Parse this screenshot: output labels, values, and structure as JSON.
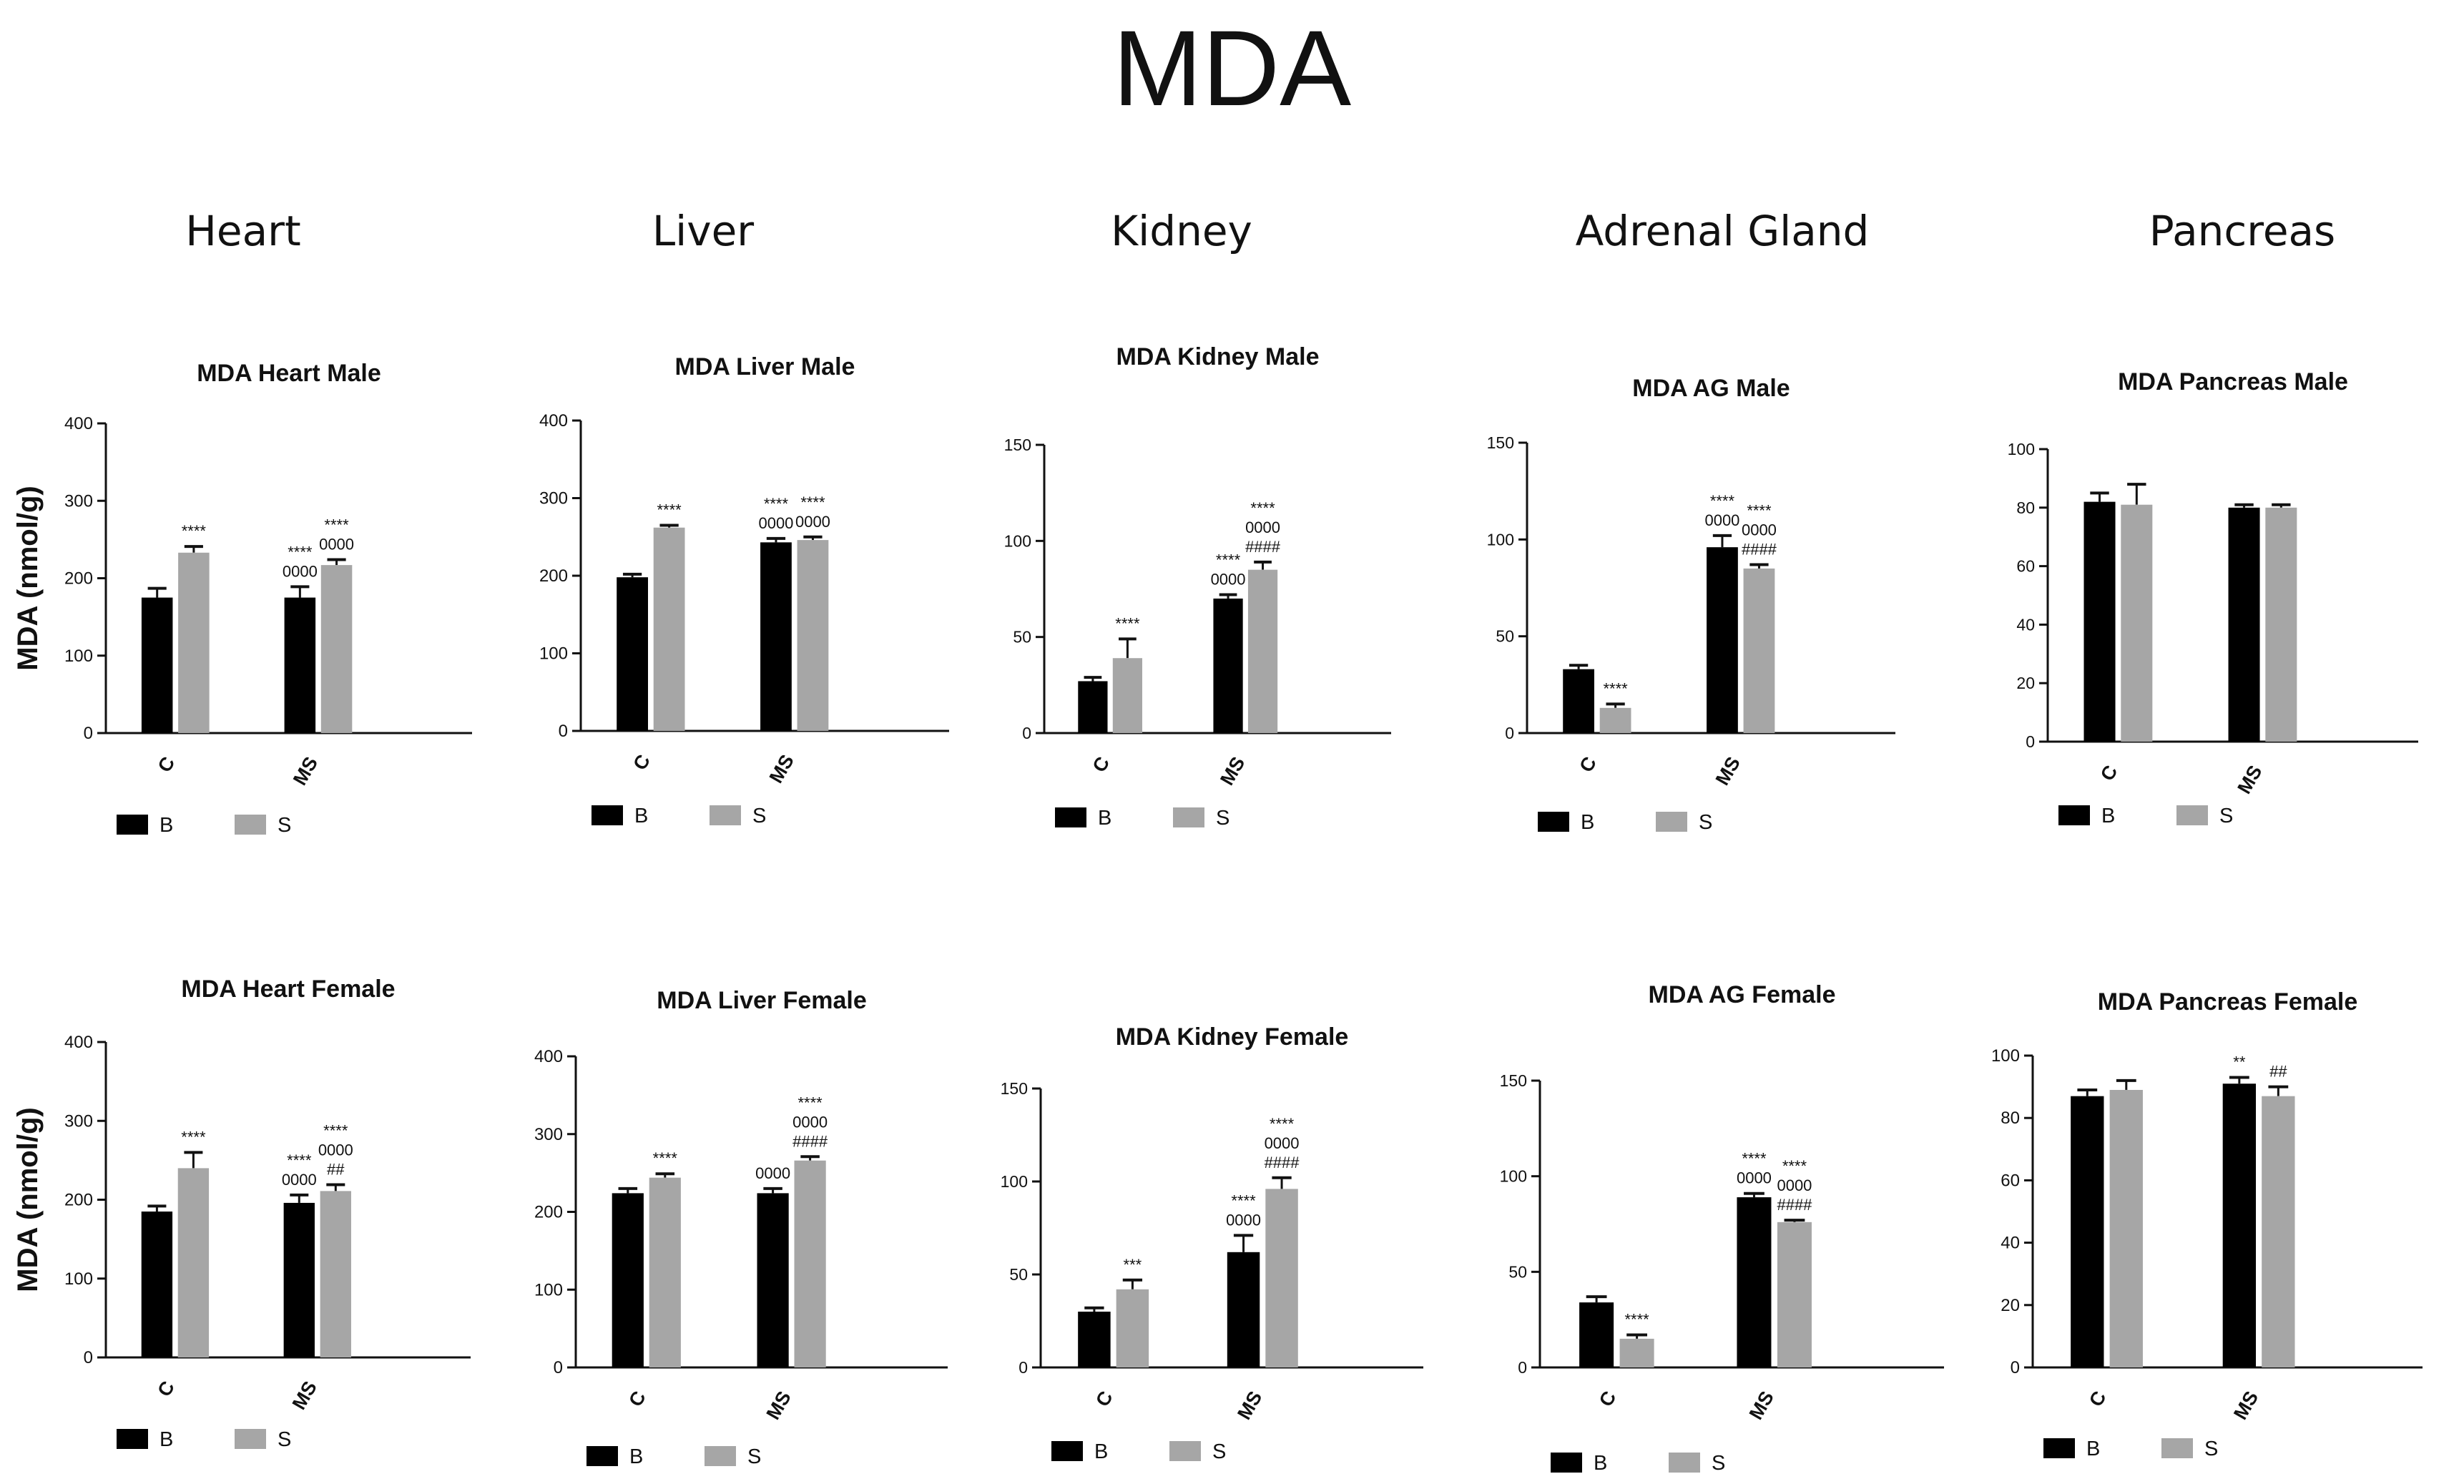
{
  "title": "MDA",
  "column_titles": [
    "Heart",
    "Liver",
    "Kidney",
    "Adrenal Gland",
    "Pancreas"
  ],
  "colors": {
    "B": "#000000",
    "S": "#a6a6a6"
  },
  "chart_data": [
    {
      "type": "bar",
      "title": "MDA Heart Male",
      "ylabel": "MDA (nmol/g)",
      "categories": [
        "C",
        "MS"
      ],
      "ylim": [
        0,
        400
      ],
      "yticks": [
        0,
        100,
        200,
        300,
        400
      ],
      "series": [
        {
          "name": "B",
          "values": [
            175,
            175
          ],
          "errors": [
            12,
            14
          ]
        },
        {
          "name": "S",
          "values": [
            233,
            217
          ],
          "errors": [
            8,
            7
          ]
        }
      ],
      "annotations": [
        [
          "",
          "****"
        ],
        [
          "****\n0000",
          "****\n0000"
        ]
      ]
    },
    {
      "type": "bar",
      "title": "MDA Liver Male",
      "ylabel": "",
      "categories": [
        "C",
        "MS"
      ],
      "ylim": [
        0,
        400
      ],
      "yticks": [
        0,
        100,
        200,
        300,
        400
      ],
      "series": [
        {
          "name": "B",
          "values": [
            198,
            243
          ],
          "errors": [
            4,
            5
          ]
        },
        {
          "name": "S",
          "values": [
            262,
            246
          ],
          "errors": [
            3,
            4
          ]
        }
      ],
      "annotations": [
        [
          "",
          "****"
        ],
        [
          "****\n0000",
          "****\n0000"
        ]
      ]
    },
    {
      "type": "bar",
      "title": "MDA Kidney Male",
      "ylabel": "",
      "categories": [
        "C",
        "MS"
      ],
      "ylim": [
        0,
        150
      ],
      "yticks": [
        0,
        50,
        100,
        150
      ],
      "series": [
        {
          "name": "B",
          "values": [
            27,
            70
          ],
          "errors": [
            2,
            2
          ]
        },
        {
          "name": "S",
          "values": [
            39,
            85
          ],
          "errors": [
            10,
            4
          ]
        }
      ],
      "annotations": [
        [
          "",
          "****"
        ],
        [
          "****\n0000",
          "****\n0000\n####"
        ]
      ]
    },
    {
      "type": "bar",
      "title": "MDA AG Male",
      "ylabel": "",
      "categories": [
        "C",
        "MS"
      ],
      "ylim": [
        0,
        150
      ],
      "yticks": [
        0,
        50,
        100,
        150
      ],
      "series": [
        {
          "name": "B",
          "values": [
            33,
            96
          ],
          "errors": [
            2,
            6
          ]
        },
        {
          "name": "S",
          "values": [
            13,
            85
          ],
          "errors": [
            2,
            2
          ]
        }
      ],
      "annotations": [
        [
          "",
          "****"
        ],
        [
          "****\n0000",
          "****\n0000\n####"
        ]
      ]
    },
    {
      "type": "bar",
      "title": "MDA Pancreas Male",
      "ylabel": "",
      "categories": [
        "C",
        "MS"
      ],
      "ylim": [
        0,
        100
      ],
      "yticks": [
        0,
        20,
        40,
        60,
        80,
        100
      ],
      "series": [
        {
          "name": "B",
          "values": [
            82,
            80
          ],
          "errors": [
            3,
            1
          ]
        },
        {
          "name": "S",
          "values": [
            81,
            80
          ],
          "errors": [
            7,
            1
          ]
        }
      ],
      "annotations": [
        [
          "",
          ""
        ],
        [
          "",
          ""
        ]
      ]
    },
    {
      "type": "bar",
      "title": "MDA Heart Female",
      "ylabel": "MDA (nmol/g)",
      "categories": [
        "C",
        "MS"
      ],
      "ylim": [
        0,
        400
      ],
      "yticks": [
        0,
        100,
        200,
        300,
        400
      ],
      "series": [
        {
          "name": "B",
          "values": [
            185,
            196
          ],
          "errors": [
            7,
            10
          ]
        },
        {
          "name": "S",
          "values": [
            240,
            211
          ],
          "errors": [
            20,
            8
          ]
        }
      ],
      "annotations": [
        [
          "",
          "****"
        ],
        [
          "****\n0000",
          "****\n0000\n##"
        ]
      ]
    },
    {
      "type": "bar",
      "title": "MDA Liver Female",
      "ylabel": "",
      "categories": [
        "C",
        "MS"
      ],
      "ylim": [
        0,
        400
      ],
      "yticks": [
        0,
        100,
        200,
        300,
        400
      ],
      "series": [
        {
          "name": "B",
          "values": [
            224,
            224
          ],
          "errors": [
            6,
            6
          ]
        },
        {
          "name": "S",
          "values": [
            244,
            266
          ],
          "errors": [
            5,
            5
          ]
        }
      ],
      "annotations": [
        [
          "",
          "****"
        ],
        [
          "0000",
          "****\n0000\n####"
        ]
      ]
    },
    {
      "type": "bar",
      "title": "MDA Kidney Female",
      "ylabel": "",
      "categories": [
        "C",
        "MS"
      ],
      "ylim": [
        0,
        150
      ],
      "yticks": [
        0,
        50,
        100,
        150
      ],
      "series": [
        {
          "name": "B",
          "values": [
            30,
            62
          ],
          "errors": [
            2,
            9
          ]
        },
        {
          "name": "S",
          "values": [
            42,
            96
          ],
          "errors": [
            5,
            6
          ]
        }
      ],
      "annotations": [
        [
          "",
          "***"
        ],
        [
          "****\n0000",
          "****\n0000\n####"
        ]
      ]
    },
    {
      "type": "bar",
      "title": "MDA AG Female",
      "ylabel": "",
      "categories": [
        "C",
        "MS"
      ],
      "ylim": [
        0,
        150
      ],
      "yticks": [
        0,
        50,
        100,
        150
      ],
      "series": [
        {
          "name": "B",
          "values": [
            34,
            89
          ],
          "errors": [
            3,
            2
          ]
        },
        {
          "name": "S",
          "values": [
            15,
            76
          ],
          "errors": [
            2,
            1
          ]
        }
      ],
      "annotations": [
        [
          "",
          "****"
        ],
        [
          "****\n0000",
          "****\n0000\n####"
        ]
      ]
    },
    {
      "type": "bar",
      "title": "MDA Pancreas Female",
      "ylabel": "",
      "categories": [
        "C",
        "MS"
      ],
      "ylim": [
        0,
        100
      ],
      "yticks": [
        0,
        20,
        40,
        60,
        80,
        100
      ],
      "series": [
        {
          "name": "B",
          "values": [
            87,
            91
          ],
          "errors": [
            2,
            2
          ]
        },
        {
          "name": "S",
          "values": [
            89,
            87
          ],
          "errors": [
            3,
            3
          ]
        }
      ],
      "annotations": [
        [
          "",
          ""
        ],
        [
          "**",
          "##"
        ]
      ]
    }
  ]
}
